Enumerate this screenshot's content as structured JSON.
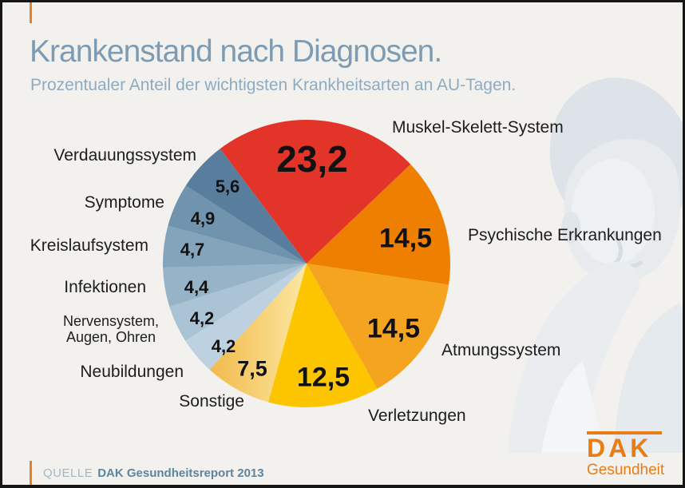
{
  "header": {
    "title": "Krankenstand nach Diagnosen.",
    "subtitle": "Prozentualer Anteil der wichtigsten Krankheitsarten an AU-Tagen."
  },
  "chart_data": {
    "type": "pie",
    "title": "Krankenstand nach Diagnosen.",
    "subtitle": "Prozentualer Anteil der wichtigsten Krankheitsarten an AU-Tagen.",
    "unit": "percent",
    "direction": "clockwise",
    "start_angle_deg_from_top": -37,
    "legend_position": "around-pie",
    "slices": [
      {
        "label": "Muskel-Skelett-System",
        "value": 23.2,
        "value_label": "23,2",
        "color": "#e3342a"
      },
      {
        "label": "Psychische Erkrankungen",
        "value": 14.5,
        "value_label": "14,5",
        "color": "#ee7f00"
      },
      {
        "label": "Atmungssystem",
        "value": 14.5,
        "value_label": "14,5",
        "color": "#f5a41f"
      },
      {
        "label": "Verletzungen",
        "value": 12.5,
        "value_label": "12,5",
        "color": "#fdc400"
      },
      {
        "label": "Sonstige",
        "value": 7.5,
        "value_label": "7,5",
        "color": "#f2ba4b",
        "color2": "#fce7a3"
      },
      {
        "label": "Neubildungen",
        "value": 4.2,
        "value_label": "4,2",
        "color": "#bdd1e0"
      },
      {
        "label": "Nervensystem, Augen, Ohren",
        "value": 4.2,
        "value_label": "4,2",
        "color": "#aac3d5"
      },
      {
        "label": "Infektionen",
        "value": 4.4,
        "value_label": "4,4",
        "color": "#96b3c8"
      },
      {
        "label": "Kreislaufsystem",
        "value": 4.7,
        "value_label": "4,7",
        "color": "#84a4bc"
      },
      {
        "label": "Symptome",
        "value": 4.9,
        "value_label": "4,9",
        "color": "#7093ae"
      },
      {
        "label": "Verdauungssystem",
        "value": 5.6,
        "value_label": "5,6",
        "color": "#597e9d"
      }
    ]
  },
  "source": {
    "prefix": "QUELLE",
    "text": "DAK Gesundheitsreport 2013"
  },
  "logo": {
    "text": "DAK",
    "subtext": "Gesundheit",
    "color": "#e87d15"
  },
  "accent_color": "#e8821e",
  "background_color": "#f2f1ee"
}
